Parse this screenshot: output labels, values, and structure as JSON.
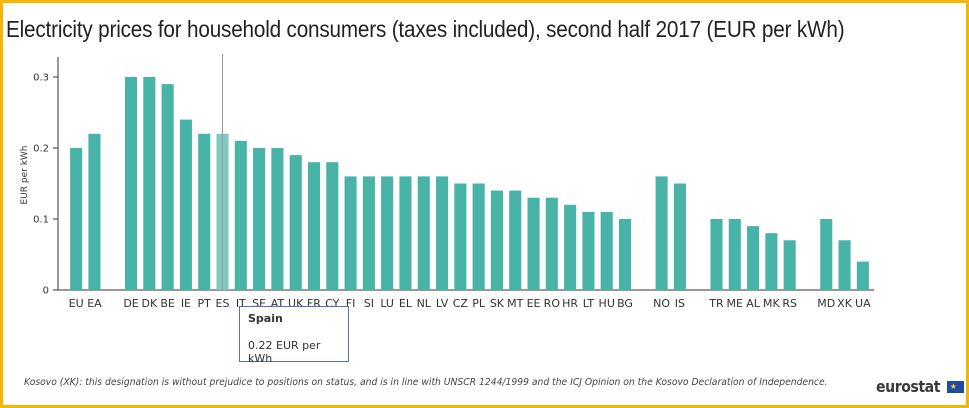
{
  "chart_data": {
    "type": "bar",
    "title": "Electricity prices for household consumers (taxes included), second half 2017 (EUR per kWh)",
    "ylabel": "EUR per kWh",
    "xlabel": "",
    "ylim": [
      0,
      0.33
    ],
    "yticks": [
      "0",
      "0.1",
      "0.2",
      "0.3"
    ],
    "yticks_values": [
      0,
      0.1,
      0.2,
      0.3
    ],
    "grid": false,
    "bar_color": "#48b3a7",
    "highlight_color": "#83c8be",
    "highlight_category": "ES",
    "categories": [
      "EU",
      "EA",
      "",
      "DE",
      "DK",
      "BE",
      "IE",
      "PT",
      "ES",
      "IT",
      "SE",
      "AT",
      "UK",
      "FR",
      "CY",
      "FI",
      "SI",
      "LU",
      "EL",
      "NL",
      "LV",
      "CZ",
      "PL",
      "SK",
      "MT",
      "EE",
      "RO",
      "HR",
      "LT",
      "HU",
      "BG",
      "",
      "NO",
      "IS",
      "",
      "TR",
      "ME",
      "AL",
      "MK",
      "RS",
      "",
      "MD",
      "XK",
      "UA"
    ],
    "values": [
      0.2,
      0.22,
      null,
      0.3,
      0.3,
      0.29,
      0.24,
      0.22,
      0.22,
      0.21,
      0.2,
      0.2,
      0.19,
      0.18,
      0.18,
      0.16,
      0.16,
      0.16,
      0.16,
      0.16,
      0.16,
      0.15,
      0.15,
      0.14,
      0.14,
      0.13,
      0.13,
      0.12,
      0.11,
      0.11,
      0.1,
      null,
      0.16,
      0.15,
      null,
      0.1,
      0.1,
      0.09,
      0.08,
      0.07,
      null,
      0.1,
      0.07,
      0.04
    ]
  },
  "tooltip": {
    "name": "Spain",
    "value": "0.22 EUR per kWh"
  },
  "footnote": "Kosovo (XK): this designation is without prejudice to positions on status, and is in line with UNSCR 1244/1999 and the ICJ Opinion on the Kosovo Declaration of Independence.",
  "logo": "eurostat",
  "colors": {
    "border": "#f2b705",
    "tooltip_border": "#5b6db7"
  }
}
